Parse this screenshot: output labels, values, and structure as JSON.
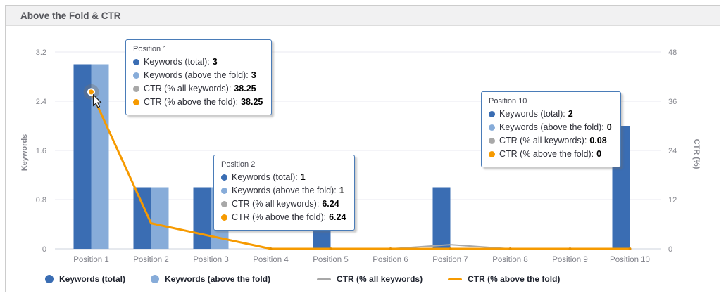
{
  "panel": {
    "title": "Above the Fold & CTR"
  },
  "chart_data": {
    "type": "bar",
    "subtype": "combo bar + line, dual axis",
    "categories": [
      "Position 1",
      "Position 2",
      "Position 3",
      "Position 4",
      "Position 5",
      "Position 6",
      "Position 7",
      "Position 8",
      "Position 9",
      "Position 10"
    ],
    "left_axis": {
      "title": "Keywords",
      "ticks": [
        "0",
        "0.8",
        "1.6",
        "2.4",
        "3.2"
      ],
      "max": 3.2
    },
    "right_axis": {
      "title": "CTR (%)",
      "ticks": [
        "0",
        "12",
        "24",
        "36",
        "48"
      ],
      "max": 48
    },
    "grid": "horizontal only",
    "legend_position": "bottom-left",
    "series": [
      {
        "name": "Keywords (total)",
        "type": "bar",
        "axis": "left",
        "color": "#3a6db3",
        "values": [
          3,
          1,
          1,
          0,
          1,
          0,
          1,
          0,
          0,
          2
        ]
      },
      {
        "name": "Keywords (above the fold)",
        "type": "bar",
        "axis": "left",
        "color": "#87acd9",
        "values": [
          3,
          1,
          1,
          0,
          0,
          0,
          0,
          0,
          0,
          0
        ]
      },
      {
        "name": "CTR (% all keywords)",
        "type": "line",
        "axis": "right",
        "color": "#a8a8a8",
        "values": [
          38.25,
          6.24,
          3.1,
          0,
          0,
          0,
          1,
          0,
          0,
          0.08
        ]
      },
      {
        "name": "CTR (% above the fold)",
        "type": "line",
        "axis": "right",
        "color": "#f69a00",
        "values": [
          38.25,
          6.24,
          3.1,
          0,
          0,
          0,
          0,
          0,
          0,
          0
        ]
      }
    ],
    "hover_point": {
      "category": "Position 1",
      "series": "CTR (% above the fold)",
      "value": 38.25
    }
  },
  "tooltips": [
    {
      "title": "Position 1",
      "rows": [
        {
          "label": "Keywords (total):",
          "value": "3",
          "color": "#3a6db3"
        },
        {
          "label": "Keywords (above the fold):",
          "value": "3",
          "color": "#87acd9"
        },
        {
          "label": "CTR (% all keywords):",
          "value": "38.25",
          "color": "#a8a8a8"
        },
        {
          "label": "CTR (% above the fold):",
          "value": "38.25",
          "color": "#f69a00"
        }
      ]
    },
    {
      "title": "Position 2",
      "rows": [
        {
          "label": "Keywords (total):",
          "value": "1",
          "color": "#3a6db3"
        },
        {
          "label": "Keywords (above the fold):",
          "value": "1",
          "color": "#87acd9"
        },
        {
          "label": "CTR (% all keywords):",
          "value": "6.24",
          "color": "#a8a8a8"
        },
        {
          "label": "CTR (% above the fold):",
          "value": "6.24",
          "color": "#f69a00"
        }
      ]
    },
    {
      "title": "Position 10",
      "rows": [
        {
          "label": "Keywords (total):",
          "value": "2",
          "color": "#3a6db3"
        },
        {
          "label": "Keywords (above the fold):",
          "value": "0",
          "color": "#87acd9"
        },
        {
          "label": "CTR (% all keywords):",
          "value": "0.08",
          "color": "#a8a8a8"
        },
        {
          "label": "CTR (% above the fold):",
          "value": "0",
          "color": "#f69a00"
        }
      ]
    }
  ],
  "legend": {
    "items": [
      {
        "label": "Keywords (total)",
        "marker": "circle",
        "color": "#3a6db3"
      },
      {
        "label": "Keywords (above the fold)",
        "marker": "circle",
        "color": "#87acd9"
      },
      {
        "label": "CTR (% all keywords)",
        "marker": "line",
        "color": "#a8a8a8"
      },
      {
        "label": "CTR (% above the fold)",
        "marker": "line",
        "color": "#f69a00"
      }
    ]
  }
}
